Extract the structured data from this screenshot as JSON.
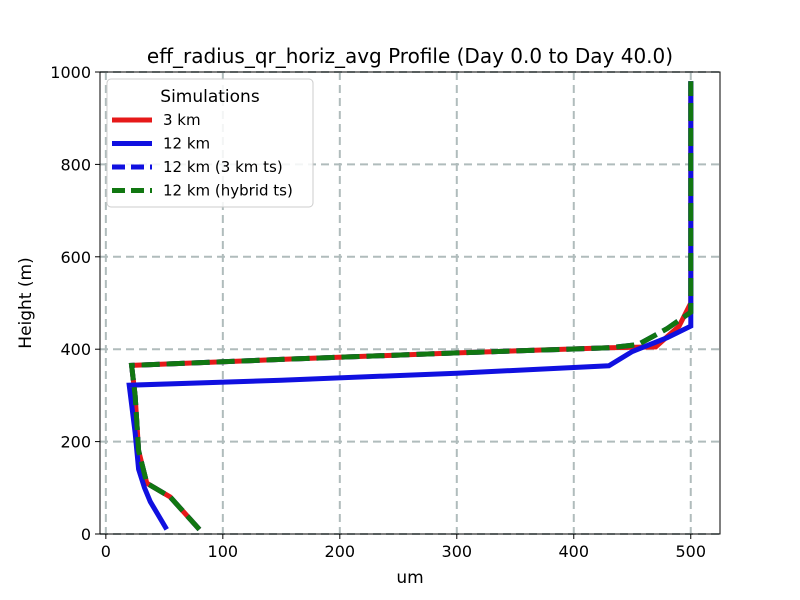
{
  "chart_data": {
    "type": "line",
    "title": "eff_radius_qr_horiz_avg Profile (Day 0.0 to Day 40.0)",
    "xlabel": "um",
    "ylabel": "Height (m)",
    "xlim": [
      -5,
      525
    ],
    "ylim": [
      0,
      1000
    ],
    "xticks": [
      0,
      100,
      200,
      300,
      400,
      500
    ],
    "yticks": [
      0,
      200,
      400,
      600,
      800,
      1000
    ],
    "grid": true,
    "legend": {
      "title": "Simulations",
      "location": "upper left"
    },
    "series": [
      {
        "name": "3 km",
        "color": "#e61919",
        "style": "solid",
        "points": [
          [
            80,
            10
          ],
          [
            55,
            80
          ],
          [
            35,
            110
          ],
          [
            28,
            180
          ],
          [
            25,
            300
          ],
          [
            22,
            365
          ],
          [
            150,
            378
          ],
          [
            300,
            392
          ],
          [
            430,
            403
          ],
          [
            470,
            405
          ],
          [
            490,
            450
          ],
          [
            500,
            500
          ],
          [
            500,
            600
          ],
          [
            500,
            800
          ],
          [
            500,
            980
          ]
        ]
      },
      {
        "name": "12 km",
        "color": "#1010e0",
        "style": "solid",
        "points": [
          [
            52,
            10
          ],
          [
            45,
            40
          ],
          [
            38,
            70
          ],
          [
            33,
            100
          ],
          [
            28,
            140
          ],
          [
            25,
            220
          ],
          [
            20,
            322
          ],
          [
            150,
            333
          ],
          [
            300,
            348
          ],
          [
            430,
            364
          ],
          [
            450,
            395
          ],
          [
            480,
            425
          ],
          [
            500,
            450
          ],
          [
            500,
            600
          ],
          [
            500,
            800
          ],
          [
            500,
            980
          ]
        ]
      },
      {
        "name": "12 km (3 km ts)",
        "color": "#1010e0",
        "style": "dashed",
        "points": [
          [
            80,
            10
          ],
          [
            55,
            80
          ],
          [
            35,
            110
          ],
          [
            28,
            180
          ],
          [
            25,
            300
          ],
          [
            22,
            365
          ],
          [
            150,
            378
          ],
          [
            300,
            392
          ],
          [
            430,
            403
          ],
          [
            455,
            410
          ],
          [
            480,
            445
          ],
          [
            500,
            480
          ],
          [
            500,
            600
          ],
          [
            500,
            800
          ],
          [
            500,
            980
          ]
        ]
      },
      {
        "name": "12 km (hybrid ts)",
        "color": "#117711",
        "style": "dashed",
        "points": [
          [
            80,
            10
          ],
          [
            55,
            80
          ],
          [
            35,
            110
          ],
          [
            28,
            180
          ],
          [
            25,
            300
          ],
          [
            22,
            365
          ],
          [
            150,
            378
          ],
          [
            300,
            392
          ],
          [
            430,
            403
          ],
          [
            455,
            410
          ],
          [
            480,
            445
          ],
          [
            500,
            480
          ],
          [
            500,
            600
          ],
          [
            500,
            800
          ],
          [
            500,
            980
          ]
        ]
      }
    ]
  }
}
